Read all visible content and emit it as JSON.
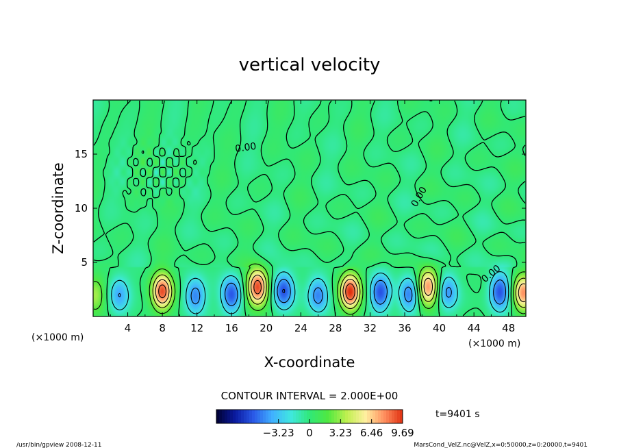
{
  "chart_data": {
    "type": "heatmap",
    "title": "vertical velocity",
    "xlabel": "X-coordinate",
    "ylabel": "Z-coordinate",
    "x_unit_left": "(×1000 m)",
    "x_unit_right": "(×1000 m)",
    "xlim": [
      0,
      50
    ],
    "ylim": [
      0,
      20
    ],
    "x_ticks": [
      4,
      8,
      12,
      16,
      20,
      24,
      28,
      32,
      36,
      40,
      44,
      48
    ],
    "x_tick_labels": [
      "4",
      "8",
      "12",
      "16",
      "20",
      "24",
      "28",
      "32",
      "36",
      "40",
      "44",
      "48"
    ],
    "y_ticks": [
      5,
      10,
      15
    ],
    "y_tick_labels": [
      "5",
      "10",
      "15"
    ],
    "contour_interval_text": "CONTOUR INTERVAL = 2.000E+00",
    "contour_label": "0.00",
    "colorbar": {
      "min": -9.69,
      "max": 9.69,
      "tick_values": [
        -3.23,
        0,
        3.23,
        6.46,
        9.69
      ],
      "tick_labels": [
        "−3.23",
        "0",
        "3.23",
        "6.46",
        "9.69"
      ],
      "colors": [
        "#000030",
        "#0a1aa0",
        "#2a5ae8",
        "#40b0ff",
        "#40e8e0",
        "#30e878",
        "#50e840",
        "#c0f050",
        "#fff0a0",
        "#ff9060",
        "#e03010"
      ]
    },
    "time_label": "t=9401 s",
    "updrafts": [
      {
        "x": 8,
        "z": 2.3,
        "w": 9.0
      },
      {
        "x": 19,
        "z": 2.7,
        "w": 9.3
      },
      {
        "x": 29.7,
        "z": 2.3,
        "w": 9.7
      },
      {
        "x": 38.7,
        "z": 2.7,
        "w": 8.0
      },
      {
        "x": 49.7,
        "z": 2.2,
        "w": 7.5
      },
      {
        "x": 0.2,
        "z": 2.0,
        "w": 3.5
      }
    ],
    "downdrafts": [
      {
        "x": 3,
        "z": 2.0,
        "w": -4.0
      },
      {
        "x": 11.8,
        "z": 1.9,
        "w": -5.0
      },
      {
        "x": 16,
        "z": 2.0,
        "w": -6.0
      },
      {
        "x": 22,
        "z": 2.4,
        "w": -6.0
      },
      {
        "x": 26,
        "z": 2.0,
        "w": -5.0
      },
      {
        "x": 33.2,
        "z": 2.2,
        "w": -6.0
      },
      {
        "x": 36.5,
        "z": 2.0,
        "w": -5.0
      },
      {
        "x": 41,
        "z": 2.3,
        "w": -4.5
      },
      {
        "x": 47,
        "z": 2.3,
        "w": -6.0
      }
    ]
  },
  "footer": {
    "left": "/usr/bin/gpview   2008-12-11",
    "right": "MarsCond_VelZ.nc@VelZ,x=0:50000,z=0:20000,t=9401"
  }
}
